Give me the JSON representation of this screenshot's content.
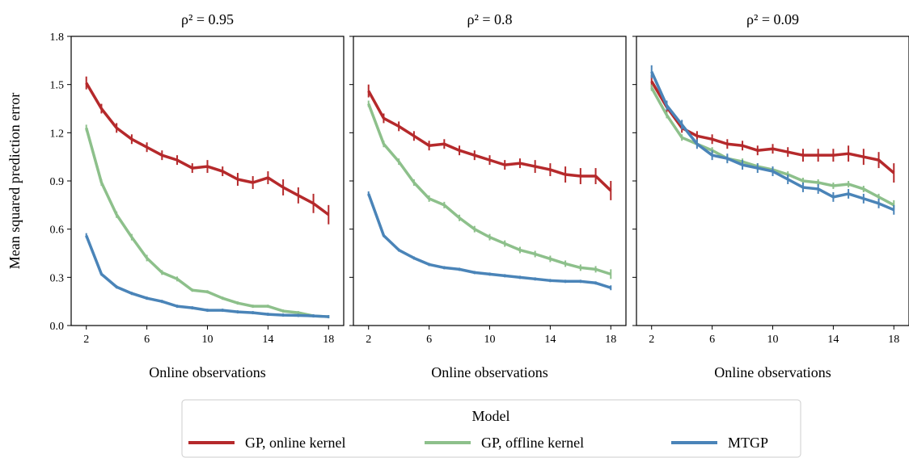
{
  "legend": {
    "title": "Model",
    "entries": [
      {
        "name": "GP, online kernel",
        "color": "#b5292b"
      },
      {
        "name": "GP, offline kernel",
        "color": "#8dc08b"
      },
      {
        "name": "MTGP",
        "color": "#4a84b8"
      }
    ]
  },
  "chart_data": [
    {
      "type": "line",
      "title": "ρ² = 0.95",
      "x_label": "Online observations",
      "y_label": "Mean squared prediction error",
      "x": [
        2,
        3,
        4,
        5,
        6,
        7,
        8,
        9,
        10,
        11,
        12,
        13,
        14,
        15,
        16,
        17,
        18
      ],
      "xlim": [
        1,
        19
      ],
      "xticks": [
        2,
        6,
        10,
        14,
        18
      ],
      "ylim": [
        0,
        1.8
      ],
      "yticks": [
        {
          "value": 0,
          "label": "0.0"
        },
        0.3,
        0.6,
        0.9,
        1.2,
        1.5,
        1.8
      ],
      "series": [
        {
          "values": [
            1.51,
            1.35,
            1.23,
            1.16,
            1.11,
            1.06,
            1.03,
            0.98,
            0.99,
            0.96,
            0.91,
            0.89,
            0.92,
            0.86,
            0.81,
            0.76,
            0.69
          ],
          "errors": [
            0.04,
            0.03,
            0.03,
            0.03,
            0.03,
            0.03,
            0.03,
            0.03,
            0.04,
            0.03,
            0.04,
            0.04,
            0.04,
            0.05,
            0.05,
            0.06,
            0.06
          ]
        },
        {
          "values": [
            1.23,
            0.89,
            0.69,
            0.55,
            0.42,
            0.33,
            0.29,
            0.22,
            0.21,
            0.17,
            0.14,
            0.12,
            0.12,
            0.09,
            0.08,
            0.06,
            0.055
          ],
          "errors": [
            0.02,
            0.02,
            0.02,
            0.02,
            0.02,
            0.015,
            0.015,
            0.01,
            0.01,
            0.01,
            0.01,
            0.01,
            0.01,
            0.01,
            0.01,
            0.01,
            0.01
          ]
        },
        {
          "values": [
            0.56,
            0.32,
            0.24,
            0.2,
            0.17,
            0.15,
            0.12,
            0.11,
            0.095,
            0.095,
            0.085,
            0.08,
            0.07,
            0.065,
            0.063,
            0.06,
            0.055
          ],
          "errors": [
            0.015,
            0.01,
            0.01,
            0.01,
            0.01,
            0.01,
            0.01,
            0.01,
            0.01,
            0.01,
            0.01,
            0.01,
            0.01,
            0.01,
            0.01,
            0.01,
            0.01
          ]
        }
      ]
    },
    {
      "type": "line",
      "title": "ρ² = 0.8",
      "x_label": "Online observations",
      "x": [
        2,
        3,
        4,
        5,
        6,
        7,
        8,
        9,
        10,
        11,
        12,
        13,
        14,
        15,
        16,
        17,
        18
      ],
      "xlim": [
        1,
        19
      ],
      "xticks": [
        2,
        6,
        10,
        14,
        18
      ],
      "ylim": [
        0,
        1.8
      ],
      "yticks": [
        0,
        0.3,
        0.6,
        0.9,
        1.2,
        1.5,
        1.8
      ],
      "series": [
        {
          "values": [
            1.46,
            1.29,
            1.24,
            1.18,
            1.12,
            1.13,
            1.09,
            1.06,
            1.03,
            1.0,
            1.01,
            0.99,
            0.97,
            0.94,
            0.93,
            0.93,
            0.84
          ],
          "errors": [
            0.04,
            0.03,
            0.03,
            0.03,
            0.03,
            0.03,
            0.03,
            0.03,
            0.03,
            0.03,
            0.03,
            0.04,
            0.04,
            0.05,
            0.05,
            0.05,
            0.06
          ]
        },
        {
          "values": [
            1.38,
            1.13,
            1.02,
            0.89,
            0.79,
            0.75,
            0.67,
            0.6,
            0.55,
            0.51,
            0.47,
            0.445,
            0.415,
            0.385,
            0.36,
            0.35,
            0.32
          ],
          "errors": [
            0.02,
            0.02,
            0.02,
            0.02,
            0.02,
            0.02,
            0.02,
            0.02,
            0.02,
            0.02,
            0.02,
            0.02,
            0.02,
            0.02,
            0.02,
            0.02,
            0.03
          ]
        },
        {
          "values": [
            0.82,
            0.56,
            0.47,
            0.42,
            0.38,
            0.36,
            0.35,
            0.33,
            0.32,
            0.31,
            0.3,
            0.29,
            0.28,
            0.275,
            0.275,
            0.265,
            0.235
          ],
          "errors": [
            0.015,
            0.01,
            0.01,
            0.01,
            0.01,
            0.01,
            0.01,
            0.01,
            0.01,
            0.01,
            0.01,
            0.01,
            0.01,
            0.01,
            0.01,
            0.01,
            0.015
          ]
        }
      ]
    },
    {
      "type": "line",
      "title": "ρ² = 0.09",
      "x_label": "Online observations",
      "x": [
        2,
        3,
        4,
        5,
        6,
        7,
        8,
        9,
        10,
        11,
        12,
        13,
        14,
        15,
        16,
        17,
        18
      ],
      "xlim": [
        1,
        19
      ],
      "xticks": [
        2,
        6,
        10,
        14,
        18
      ],
      "ylim": [
        0,
        1.8
      ],
      "yticks": [
        0,
        0.3,
        0.6,
        0.9,
        1.2,
        1.5,
        1.8
      ],
      "series": [
        {
          "values": [
            1.52,
            1.36,
            1.23,
            1.18,
            1.16,
            1.13,
            1.12,
            1.09,
            1.1,
            1.08,
            1.06,
            1.06,
            1.06,
            1.07,
            1.05,
            1.03,
            0.95
          ],
          "errors": [
            0.04,
            0.03,
            0.03,
            0.03,
            0.03,
            0.03,
            0.03,
            0.03,
            0.03,
            0.03,
            0.04,
            0.04,
            0.04,
            0.05,
            0.05,
            0.05,
            0.06
          ]
        },
        {
          "values": [
            1.48,
            1.31,
            1.17,
            1.13,
            1.09,
            1.04,
            1.02,
            0.99,
            0.97,
            0.94,
            0.9,
            0.89,
            0.87,
            0.88,
            0.85,
            0.8,
            0.75
          ],
          "errors": [
            0.02,
            0.02,
            0.02,
            0.02,
            0.02,
            0.02,
            0.02,
            0.02,
            0.02,
            0.02,
            0.02,
            0.02,
            0.02,
            0.02,
            0.02,
            0.02,
            0.03
          ]
        },
        {
          "values": [
            1.58,
            1.37,
            1.25,
            1.13,
            1.06,
            1.04,
            1.0,
            0.98,
            0.96,
            0.91,
            0.86,
            0.85,
            0.8,
            0.82,
            0.79,
            0.76,
            0.72
          ],
          "errors": [
            0.04,
            0.03,
            0.03,
            0.03,
            0.03,
            0.03,
            0.03,
            0.03,
            0.03,
            0.03,
            0.03,
            0.03,
            0.03,
            0.03,
            0.03,
            0.03,
            0.03
          ]
        }
      ]
    }
  ]
}
